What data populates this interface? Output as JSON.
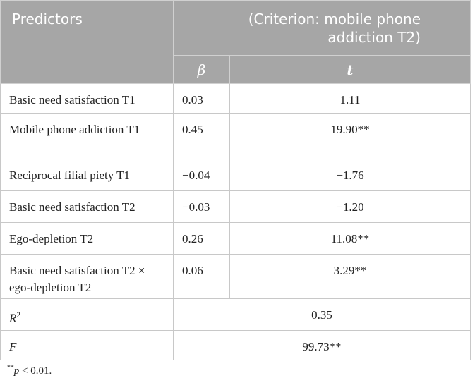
{
  "header": {
    "predictors": "Predictors",
    "criterion": "(Criterion: mobile phone addiction T2)",
    "beta": "β",
    "t": "t"
  },
  "rows": [
    [
      "Basic need satisfaction T1",
      "0.03",
      "1.11"
    ],
    [
      "Mobile phone addiction T1",
      "0.45",
      "19.90**"
    ],
    [
      "Reciprocal filial piety T1",
      "−0.04",
      "−1.76"
    ],
    [
      "Basic need satisfaction T2",
      "−0.03",
      "−1.20"
    ],
    [
      "Ego-depletion T2",
      "0.26",
      "11.08**"
    ],
    [
      "Basic need satisfaction T2 × ego-depletion T2",
      "0.06",
      "3.29**"
    ]
  ],
  "summary": [
    {
      "label": "R",
      "sup": "2",
      "value": "0.35"
    },
    {
      "label": "F",
      "value": "99.73**"
    }
  ],
  "footnote": {
    "stars": "**",
    "p": "p",
    "rest": " < 0.01."
  }
}
